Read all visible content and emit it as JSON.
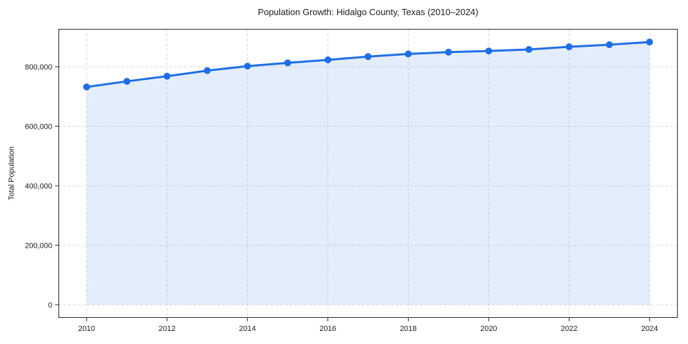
{
  "title": "Population Growth: Hidalgo County, Texas (2010–2024)",
  "chart_data": {
    "type": "line",
    "title": "Population Growth: Hidalgo County, Texas (2010–2024)",
    "xlabel": "",
    "ylabel": "Total Population",
    "x": [
      2010,
      2011,
      2012,
      2013,
      2014,
      2015,
      2016,
      2017,
      2018,
      2019,
      2020,
      2021,
      2022,
      2023,
      2024
    ],
    "series": [
      {
        "name": "Total Population",
        "values": [
          732000,
          751000,
          768000,
          787000,
          802000,
          813000,
          823000,
          834000,
          843000,
          849000,
          853000,
          858000,
          867000,
          874000,
          883000
        ]
      }
    ],
    "x_ticks": [
      2010,
      2012,
      2014,
      2016,
      2018,
      2020,
      2022,
      2024
    ],
    "x_tick_labels": [
      "2010",
      "2012",
      "2014",
      "2016",
      "2018",
      "2020",
      "2022",
      "2024"
    ],
    "y_ticks": [
      0,
      200000,
      400000,
      600000,
      800000
    ],
    "y_tick_labels": [
      "0",
      "200,000",
      "400,000",
      "600,000",
      "800,000"
    ],
    "xlim": [
      2009.3,
      2024.7
    ],
    "ylim": [
      -44150,
      927150
    ],
    "grid": true,
    "grid_style": "dashed",
    "legend": "none",
    "line_color": "#1e6ee6",
    "marker_color": "#1e6ee6",
    "fill_color": "rgba(30, 110, 230, 0.12)",
    "fill_to": 0
  },
  "colors": {
    "background": "#ffffff",
    "grid": "#dadada",
    "axis": "#262626",
    "text": "#1a1a1a"
  }
}
